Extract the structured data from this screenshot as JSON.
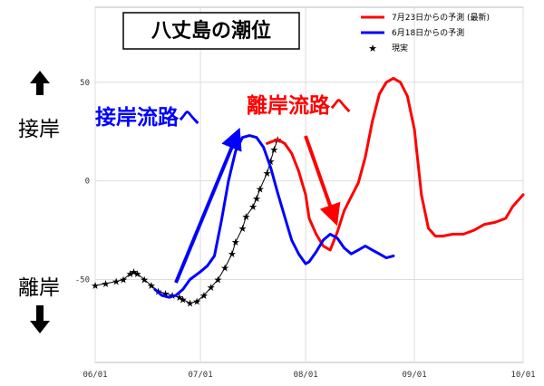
{
  "chart_data": {
    "type": "line",
    "title": "八丈島の潮位",
    "ylim": [
      -92,
      88
    ],
    "yticks": [
      50,
      0,
      -50
    ],
    "xlim": [
      "06/01",
      "10/01"
    ],
    "x_tick_labels": [
      "06/01",
      "07/01",
      "08/01",
      "09/01",
      "10/01"
    ],
    "grid": true,
    "legend_position": "top-right",
    "series": [
      {
        "name": "7月23日からの予測 (最新)",
        "color": "#ff0000",
        "style": "line",
        "points": [
          [
            "07/20",
            19
          ],
          [
            "07/23",
            21
          ],
          [
            "07/25",
            19
          ],
          [
            "07/27",
            14
          ],
          [
            "07/29",
            5
          ],
          [
            "07/31",
            -7
          ],
          [
            "08/02",
            -19
          ],
          [
            "08/04",
            -27
          ],
          [
            "08/06",
            -33
          ],
          [
            "08/08",
            -35
          ],
          [
            "08/10",
            -26
          ],
          [
            "08/12",
            -15
          ],
          [
            "08/14",
            -8
          ],
          [
            "08/16",
            -1
          ],
          [
            "08/18",
            12
          ],
          [
            "08/20",
            30
          ],
          [
            "08/22",
            44
          ],
          [
            "08/24",
            50
          ],
          [
            "08/26",
            52
          ],
          [
            "08/28",
            50
          ],
          [
            "08/30",
            43
          ],
          [
            "09/01",
            26
          ],
          [
            "09/03",
            -7
          ],
          [
            "09/05",
            -24
          ],
          [
            "09/07",
            -28
          ],
          [
            "09/09",
            -28
          ],
          [
            "09/12",
            -27
          ],
          [
            "09/15",
            -27
          ],
          [
            "09/18",
            -25
          ],
          [
            "09/21",
            -22
          ],
          [
            "09/24",
            -21
          ],
          [
            "09/27",
            -19
          ],
          [
            "09/29",
            -13
          ],
          [
            "10/01",
            -7
          ]
        ]
      },
      {
        "name": "6月18日からの予測",
        "color": "#0000ff",
        "style": "line",
        "points": [
          [
            "06/18",
            -55
          ],
          [
            "06/20",
            -58
          ],
          [
            "06/22",
            -59
          ],
          [
            "06/24",
            -58
          ],
          [
            "06/26",
            -55
          ],
          [
            "06/28",
            -50
          ],
          [
            "07/01",
            -46
          ],
          [
            "07/03",
            -43
          ],
          [
            "07/05",
            -38
          ],
          [
            "07/07",
            -20
          ],
          [
            "07/09",
            0
          ],
          [
            "07/11",
            15
          ],
          [
            "07/13",
            22
          ],
          [
            "07/15",
            23
          ],
          [
            "07/17",
            22
          ],
          [
            "07/19",
            17
          ],
          [
            "07/21",
            7
          ],
          [
            "07/23",
            -6
          ],
          [
            "07/25",
            -18
          ],
          [
            "07/27",
            -30
          ],
          [
            "07/29",
            -37
          ],
          [
            "07/31",
            -42
          ],
          [
            "08/02",
            -41
          ],
          [
            "08/04",
            -36
          ],
          [
            "08/06",
            -30
          ],
          [
            "08/08",
            -27
          ],
          [
            "08/10",
            -29
          ],
          [
            "08/12",
            -34
          ],
          [
            "08/14",
            -37
          ],
          [
            "08/16",
            -35
          ],
          [
            "08/18",
            -33
          ],
          [
            "08/20",
            -35
          ],
          [
            "08/22",
            -37
          ],
          [
            "08/24",
            -39
          ],
          [
            "08/26",
            -38
          ]
        ]
      },
      {
        "name": "現実",
        "color": "#000000",
        "style": "star",
        "points": [
          [
            "06/01",
            -53
          ],
          [
            "06/04",
            -52
          ],
          [
            "06/07",
            -51
          ],
          [
            "06/09",
            -50
          ],
          [
            "06/11",
            -47
          ],
          [
            "06/12",
            -46
          ],
          [
            "06/13",
            -47
          ],
          [
            "06/15",
            -50
          ],
          [
            "06/17",
            -53
          ],
          [
            "06/19",
            -56
          ],
          [
            "06/21",
            -57
          ],
          [
            "06/23",
            -58
          ],
          [
            "06/25",
            -59
          ],
          [
            "06/26",
            -60
          ],
          [
            "06/28",
            -62
          ],
          [
            "06/30",
            -61
          ],
          [
            "07/02",
            -58
          ],
          [
            "07/04",
            -54
          ],
          [
            "07/06",
            -50
          ],
          [
            "07/08",
            -44
          ],
          [
            "07/10",
            -37
          ],
          [
            "07/11",
            -31
          ],
          [
            "07/13",
            -24
          ],
          [
            "07/14",
            -18
          ],
          [
            "07/16",
            -13
          ],
          [
            "07/17",
            -9
          ],
          [
            "07/18",
            -4
          ],
          [
            "07/20",
            4
          ],
          [
            "07/21",
            10
          ],
          [
            "07/22",
            16
          ],
          [
            "07/23",
            21
          ]
        ]
      }
    ],
    "annotations": [
      {
        "text": "接岸流路へ",
        "color": "#0000ff"
      },
      {
        "text": "離岸流路へ",
        "color": "#ff0000"
      }
    ]
  },
  "side_labels": {
    "top": "接岸",
    "bottom": "離岸"
  }
}
